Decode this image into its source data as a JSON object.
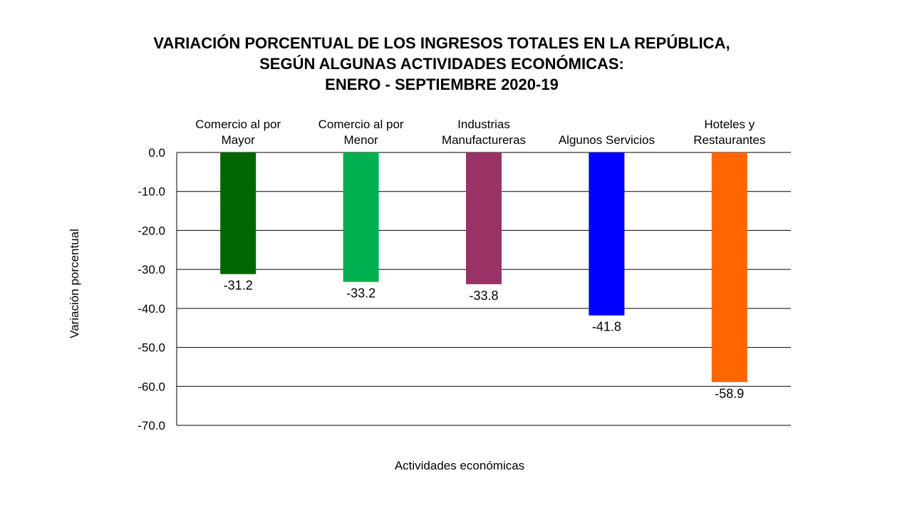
{
  "chart_data": {
    "type": "bar",
    "title_lines": [
      "VARIACIÓN PORCENTUAL DE LOS INGRESOS TOTALES EN LA REPÚBLICA,",
      "SEGÚN ALGUNAS ACTIVIDADES ECONÓMICAS:",
      "ENERO - SEPTIEMBRE 2020-19"
    ],
    "categories": [
      [
        "Comercio al por",
        "Mayor"
      ],
      [
        "Comercio al por",
        "Menor"
      ],
      [
        "Industrias",
        "Manufactureras"
      ],
      [
        "Algunos Servicios"
      ],
      [
        "Hoteles y",
        "Restaurantes"
      ]
    ],
    "values": [
      -31.2,
      -33.2,
      -33.8,
      -41.8,
      -58.9
    ],
    "value_labels": [
      "-31.2",
      "-33.2",
      "-33.8",
      "-41.8",
      "-58.9"
    ],
    "colors": [
      "#006600",
      "#00b050",
      "#993366",
      "#0000ff",
      "#ff6600"
    ],
    "ylim": [
      -70,
      0
    ],
    "yticks": [
      0,
      -10,
      -20,
      -30,
      -40,
      -50,
      -60,
      -70
    ],
    "ytick_labels": [
      "0.0",
      "-10.0",
      "-20.0",
      "-30.0",
      "-40.0",
      "-50.0",
      "-60.0",
      "-70.0"
    ],
    "xlabel": "Actividades económicas",
    "ylabel": "Variación porcentual",
    "grid": true
  }
}
